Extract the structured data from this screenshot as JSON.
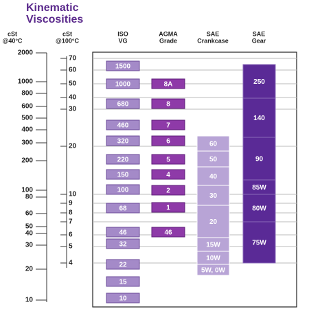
{
  "title": [
    "Kinematic",
    "Viscosities"
  ],
  "headers": [
    [
      "cSt",
      "@40°C"
    ],
    [
      "cSt",
      "@100°C"
    ],
    [
      "ISO",
      "VG"
    ],
    [
      "AGMA",
      "Grade"
    ],
    [
      "SAE",
      "Crankcase"
    ],
    [
      "SAE",
      "Gear"
    ]
  ],
  "cst40": [
    "2000",
    "1000",
    "800",
    "600",
    "500",
    "400",
    "300",
    "200",
    "100",
    "80",
    "60",
    "50",
    "40",
    "30",
    "20",
    "10"
  ],
  "cst100": [
    "70",
    "60",
    "50",
    "40",
    "30",
    "20",
    "10",
    "9",
    "8",
    "7",
    "6",
    "5",
    "4"
  ],
  "iso": [
    "1500",
    "1000",
    "680",
    "460",
    "320",
    "220",
    "150",
    "100",
    "68",
    "46",
    "32",
    "22",
    "15",
    "10"
  ],
  "agma": [
    "8A",
    "8",
    "7",
    "6",
    "5",
    "4",
    "2",
    "1",
    "46"
  ],
  "crankcase": [
    "60",
    "50",
    "40",
    "30",
    "20",
    "15W",
    "10W",
    "5W, 0W"
  ],
  "gear": [
    "250",
    "140",
    "90",
    "85W",
    "80W",
    "75W"
  ]
}
